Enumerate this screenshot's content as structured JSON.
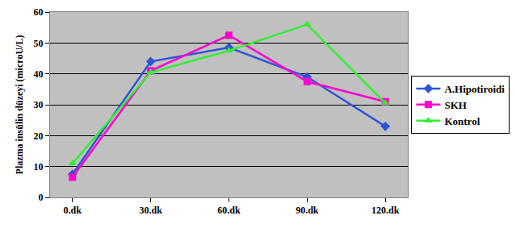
{
  "chart_data": {
    "type": "line",
    "y_label": "Plazma insülin düzeyi (microU/L)",
    "categories": [
      "0.dk",
      "30.dk",
      "60.dk",
      "90.dk",
      "120.dk"
    ],
    "series": [
      {
        "name": "A.Hipotiroidi",
        "color": "#2F55D4",
        "marker": "diamond",
        "line_style": "solid",
        "values": [
          7.5,
          44,
          48.5,
          39,
          23
        ]
      },
      {
        "name": "SKH",
        "color": "#FF00CC",
        "marker": "square",
        "line_style": "solid",
        "values": [
          6.5,
          41,
          52.5,
          37.5,
          31
        ]
      },
      {
        "name": "Kontrol",
        "color": "#33EE33",
        "marker": "triangle",
        "line_style": "solid",
        "values": [
          11,
          40.5,
          47.5,
          56,
          30.5
        ]
      }
    ],
    "ylim": [
      0,
      60
    ],
    "yticks": [
      0,
      10,
      20,
      30,
      40,
      50,
      60
    ],
    "grid": true,
    "legend": "right"
  }
}
